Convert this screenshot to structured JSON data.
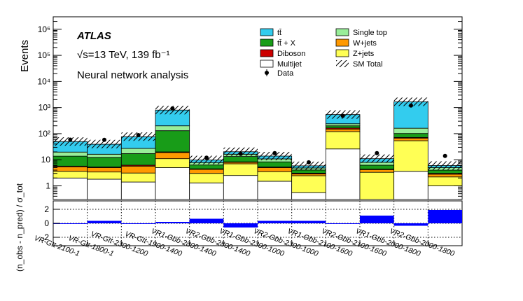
{
  "chart_data": {
    "type": "bar",
    "subtype": "stacked-log-histogram-with-pull",
    "experiment": "ATLAS",
    "energy_lumi": "√s=13 TeV, 139 fb⁻¹",
    "analysis_label": "Neural network analysis",
    "ylabel": "Events",
    "ratio_ylabel": "(n_obs - n_pred) / σ_tot",
    "ylim_log": [
      0.3,
      3000000
    ],
    "ratio_ylim": [
      -3.2,
      3.2
    ],
    "y_ticks": [
      {
        "value": 1,
        "label": "1"
      },
      {
        "value": 10,
        "label": "10"
      },
      {
        "value": 100,
        "label": "10²"
      },
      {
        "value": 1000,
        "label": "10³"
      },
      {
        "value": 10000,
        "label": "10⁴"
      },
      {
        "value": 100000,
        "label": "10⁵"
      },
      {
        "value": 1000000,
        "label": "10⁶"
      }
    ],
    "ratio_ticks": [
      -2,
      0,
      2
    ],
    "categories": [
      "VR-Gtt-2100-1",
      "VR-Gtt-1800-1",
      "VR-Gtt-2300-1200",
      "VR-Gtt-1900-1400",
      "VR1-Gbb-2800-1400",
      "VR2-Gbb-2800-1400",
      "VR1-Gbb-2300-1000",
      "VR2-Gbb-2300-1000",
      "VR1-Gbb-2100-1600",
      "VR2-Gbb-2100-1600",
      "VR1-Gbb-2000-1800",
      "VR2-Gbb-2000-1800"
    ],
    "series": [
      {
        "key": "multijet",
        "name": "Multijet",
        "color": "#ffffff",
        "values": [
          2.0,
          1.8,
          1.4,
          5.0,
          1.3,
          2.5,
          1.5,
          0.55,
          26.0,
          0.3,
          3.6,
          1.0
        ]
      },
      {
        "key": "zjets",
        "name": "Z+jets",
        "color": "#ffff55",
        "values": [
          1.6,
          1.6,
          1.7,
          6.0,
          1.7,
          4.5,
          2.0,
          1.9,
          94.0,
          3.0,
          50.0,
          1.2
        ]
      },
      {
        "key": "wjets",
        "name": "W+jets",
        "color": "#ff9900",
        "values": [
          1.8,
          1.6,
          2.6,
          8.0,
          1.3,
          1.0,
          1.5,
          0.4,
          30.0,
          0.9,
          14.0,
          0.6
        ]
      },
      {
        "key": "diboson",
        "name": "Diboson",
        "color": "#cc0000",
        "values": [
          0.3,
          0.3,
          0.5,
          1.0,
          0.2,
          0.3,
          0.3,
          0.2,
          15.0,
          0.2,
          4.0,
          0.2
        ]
      },
      {
        "key": "ttx",
        "name": "tt̄ + X",
        "color": "#189c18",
        "values": [
          8.0,
          7.0,
          11.0,
          110.0,
          1.8,
          5.0,
          3.0,
          1.0,
          35.0,
          1.8,
          30.0,
          1.0
        ]
      },
      {
        "key": "singletop",
        "name": "Single top",
        "color": "#99ee99",
        "values": [
          6.0,
          4.0,
          10.0,
          70.0,
          1.5,
          3.0,
          2.5,
          0.8,
          40.0,
          1.8,
          60.0,
          1.0
        ]
      },
      {
        "key": "ttbar",
        "name": "tt̄",
        "color": "#33ccee",
        "values": [
          30.0,
          23.0,
          49.0,
          600.0,
          2.0,
          4.0,
          3.0,
          1.0,
          300.0,
          3.0,
          1500.0,
          1.0
        ]
      }
    ],
    "sm_total": [
      50,
      40,
      77,
      800,
      9.8,
      20.3,
      13.8,
      5.85,
      540,
      11,
      1662,
      6
    ],
    "data": [
      59,
      58,
      88,
      930,
      12,
      17,
      18,
      8,
      480,
      18,
      1200,
      14
    ],
    "pull": [
      -0.05,
      0.35,
      -0.05,
      0.2,
      0.65,
      -0.6,
      0.35,
      0.35,
      -0.05,
      1.1,
      -0.35,
      1.9
    ],
    "legend": [
      {
        "name": "tt̄",
        "kind": "box",
        "color": "#33ccee"
      },
      {
        "name": "Single top",
        "kind": "box",
        "color": "#99ee99"
      },
      {
        "name": "tt̄ + X",
        "kind": "box",
        "color": "#189c18"
      },
      {
        "name": "W+jets",
        "kind": "box",
        "color": "#ff9900"
      },
      {
        "name": "Diboson",
        "kind": "box",
        "color": "#cc0000"
      },
      {
        "name": "Z+jets",
        "kind": "box",
        "color": "#ffff55"
      },
      {
        "name": "Multijet",
        "kind": "box",
        "color": "#ffffff"
      },
      {
        "name": "SM Total",
        "kind": "hatch",
        "color": "#000000"
      },
      {
        "name": "Data",
        "kind": "marker",
        "color": "#000000"
      }
    ],
    "pull_color": "#0000ff"
  }
}
